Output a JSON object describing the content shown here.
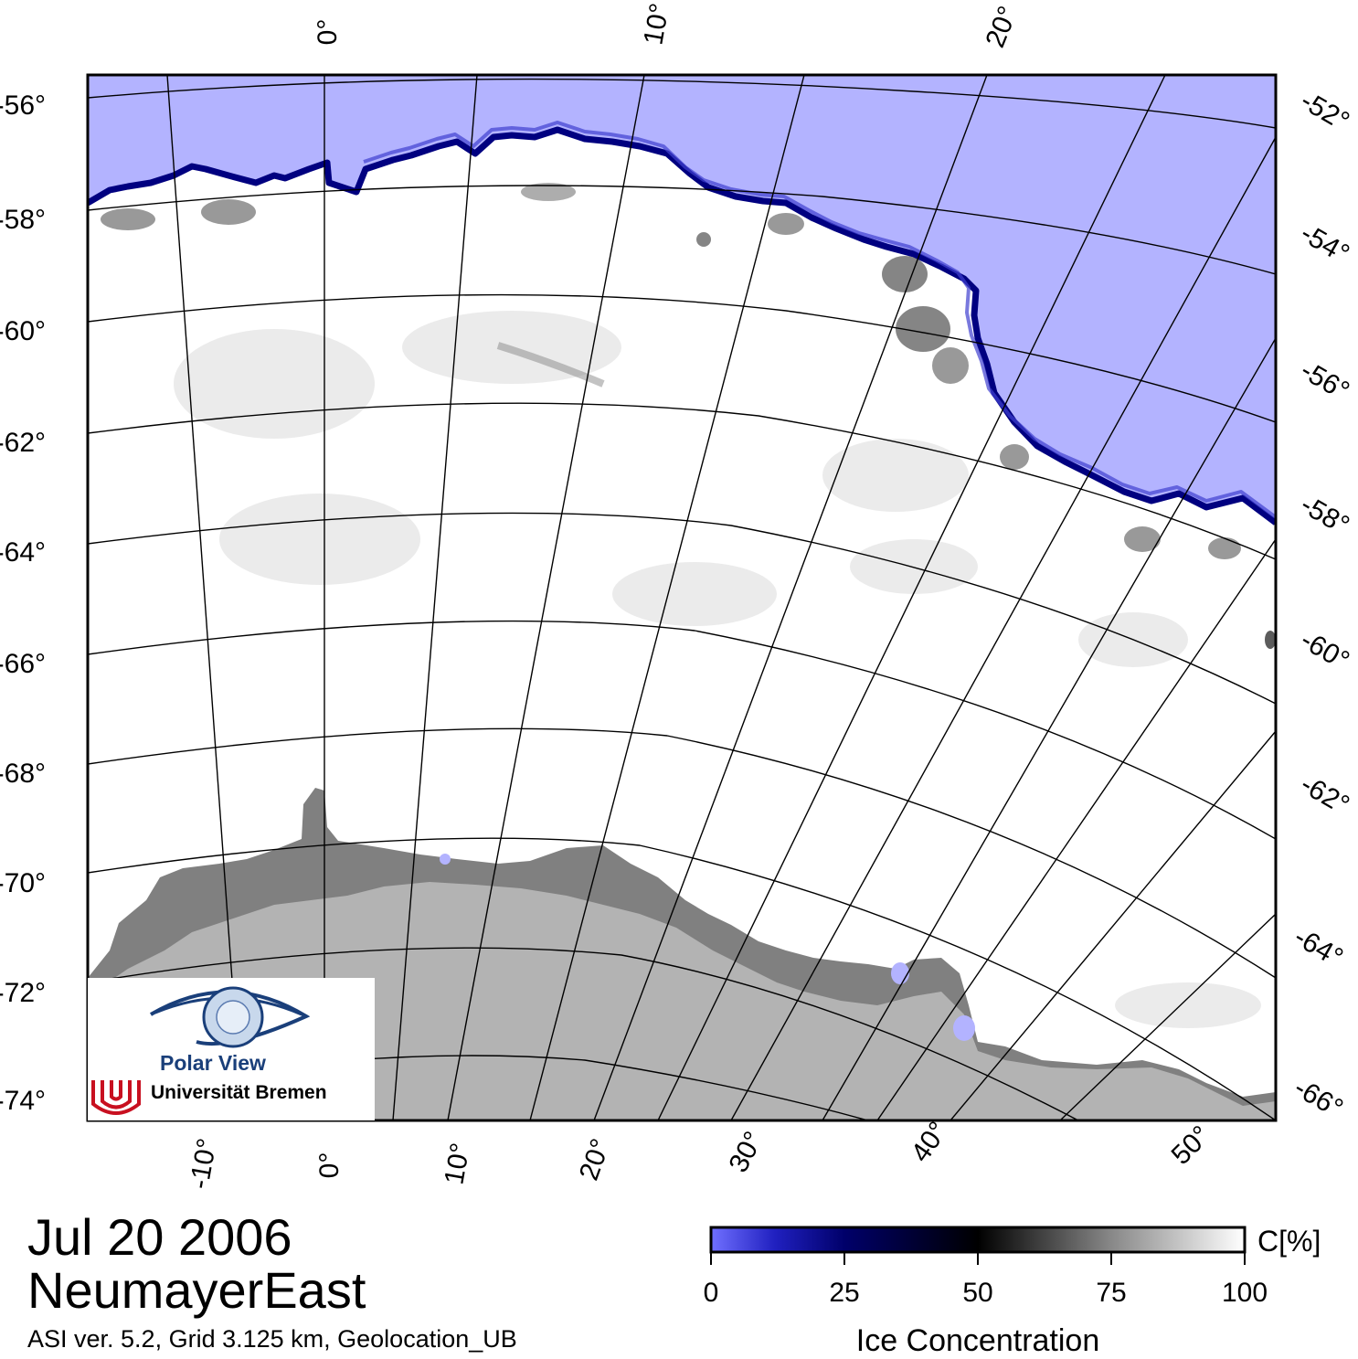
{
  "date": "Jul 20 2006",
  "region": "NeumayerEast",
  "info_line": "ASI ver. 5.2,  Grid 3.125 km, Geolocation_UB",
  "colorbar": {
    "unit_label": "C[%]",
    "title": "Ice Concentration",
    "ticks": [
      "0",
      "25",
      "50",
      "75",
      "100"
    ]
  },
  "logo": {
    "line1": "Polar View",
    "line2": "Universität Bremen"
  },
  "left_lat_labels": [
    "-56°",
    "-58°",
    "-60°",
    "-62°",
    "-64°",
    "-66°",
    "-68°",
    "-70°",
    "-72°",
    "-74°"
  ],
  "right_lat_labels": [
    "-52°",
    "-54°",
    "-56°",
    "-58°",
    "-60°",
    "-62°",
    "-64°",
    "-66°"
  ],
  "top_lon_labels": [
    "0°",
    "10°",
    "20°"
  ],
  "bottom_lon_labels": [
    "-10°",
    "0°",
    "10°",
    "20°",
    "30°",
    "40°",
    "50°"
  ],
  "colors": {
    "open_water": "#b3b3ff",
    "land": "#b3b3b3",
    "ice_shelf": "#808080",
    "ice_edge": "#000080",
    "sea_ice": "#ffffff"
  }
}
